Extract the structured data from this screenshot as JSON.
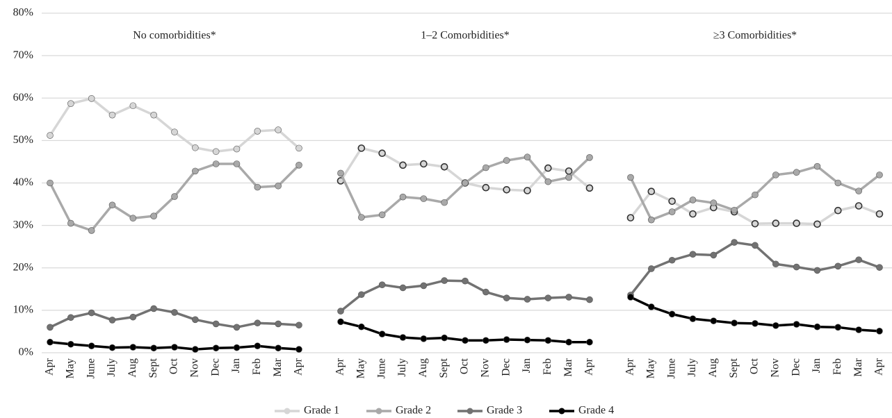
{
  "chart_data": [
    {
      "type": "line",
      "title": "No comorbidities*",
      "categories": [
        "Apr",
        "May",
        "June",
        "July",
        "Aug",
        "Sept",
        "Oct",
        "Nov",
        "Dec",
        "Jan",
        "Feb",
        "Mar",
        "Apr"
      ],
      "ylim": [
        0,
        80
      ],
      "yticks": [
        {
          "value": 0,
          "label": "0%"
        },
        {
          "value": 10,
          "label": "10%"
        },
        {
          "value": 20,
          "label": "20%"
        },
        {
          "value": 30,
          "label": "30%"
        },
        {
          "value": 40,
          "label": "40%"
        },
        {
          "value": 50,
          "label": "50%"
        },
        {
          "value": 60,
          "label": "60%"
        },
        {
          "value": 70,
          "label": "70%"
        },
        {
          "value": 80,
          "label": "80%"
        }
      ],
      "grid": true,
      "series": [
        {
          "name": "Grade 1",
          "color": "#d6d6d6",
          "values": [
            51.2,
            58.7,
            59.9,
            56,
            58.2,
            56,
            52,
            48.3,
            47.4,
            48,
            52.2,
            52.5,
            48.2
          ]
        },
        {
          "name": "Grade 2",
          "color": "#a9a9a9",
          "values": [
            40,
            30.5,
            28.8,
            34.8,
            31.7,
            32.2,
            36.8,
            42.8,
            44.5,
            44.5,
            39,
            39.3,
            44.2
          ]
        },
        {
          "name": "Grade 3",
          "color": "#727272",
          "values": [
            6,
            8.3,
            9.4,
            7.7,
            8.4,
            10.4,
            9.5,
            7.8,
            6.8,
            6,
            7,
            6.8,
            6.5
          ]
        },
        {
          "name": "Grade 4",
          "color": "#000000",
          "values": [
            2.5,
            2,
            1.6,
            1.2,
            1.3,
            1.1,
            1.3,
            0.8,
            1.1,
            1.2,
            1.6,
            1.1,
            0.8
          ]
        }
      ]
    },
    {
      "type": "line",
      "title": "1–2 Comorbidities*",
      "categories": [
        "Apr",
        "May",
        "June",
        "July",
        "Aug",
        "Sept",
        "Oct",
        "Nov",
        "Dec",
        "Jan",
        "Feb",
        "Mar",
        "Apr"
      ],
      "series": [
        {
          "values": [
            40.5,
            48.2,
            47,
            44.2,
            44.5,
            43.8,
            40,
            38.9,
            38.4,
            38.2,
            43.5,
            42.8,
            38.8
          ]
        },
        {
          "values": [
            42.3,
            31.9,
            32.5,
            36.7,
            36.3,
            35.4,
            40,
            43.6,
            45.3,
            46.1,
            40.3,
            41.3,
            46
          ]
        },
        {
          "values": [
            9.8,
            13.7,
            16,
            15.3,
            15.8,
            17,
            16.9,
            14.3,
            12.9,
            12.6,
            12.9,
            13.1,
            12.5
          ]
        },
        {
          "values": [
            7.3,
            6.1,
            4.4,
            3.6,
            3.3,
            3.5,
            2.9,
            2.9,
            3.1,
            3,
            2.9,
            2.5,
            2.5
          ]
        }
      ]
    },
    {
      "type": "line",
      "title": "≥3 Comorbidities*",
      "categories": [
        "Apr",
        "May",
        "June",
        "July",
        "Aug",
        "Sept",
        "Oct",
        "Nov",
        "Dec",
        "Jan",
        "Feb",
        "Mar",
        "Apr"
      ],
      "series": [
        {
          "values": [
            31.8,
            38,
            35.7,
            32.7,
            34.2,
            33.2,
            30.4,
            30.5,
            30.5,
            30.3,
            33.5,
            34.6,
            32.7
          ]
        },
        {
          "values": [
            41.3,
            31.3,
            33.2,
            36,
            35.3,
            33.6,
            37.2,
            41.9,
            42.5,
            43.9,
            40,
            38.1,
            41.9
          ]
        },
        {
          "values": [
            13.6,
            19.8,
            21.8,
            23.2,
            23,
            26,
            25.3,
            20.9,
            20.2,
            19.4,
            20.4,
            21.9,
            20.1
          ]
        },
        {
          "values": [
            13.1,
            10.8,
            9.1,
            8,
            7.5,
            7,
            6.9,
            6.4,
            6.7,
            6.1,
            6,
            5.4,
            5.1
          ]
        }
      ]
    }
  ]
}
